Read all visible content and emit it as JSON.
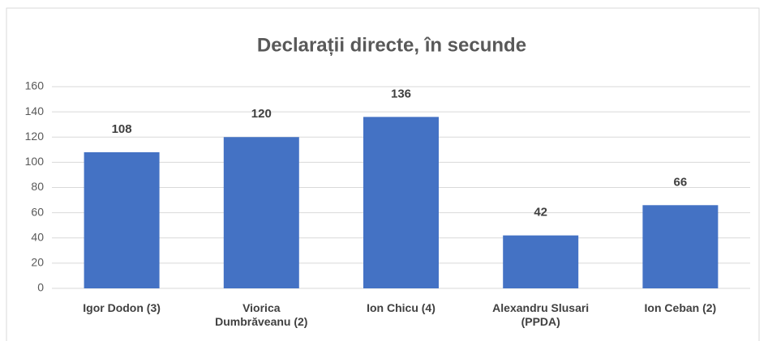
{
  "chart_data": {
    "type": "bar",
    "title": "Declarații directe, în secunde",
    "categories": [
      "Igor Dodon (3)",
      "Viorica Dumbrăveanu (2)",
      "Ion Chicu (4)",
      "Alexandru Slusari (PPDA)",
      "Ion Ceban (2)"
    ],
    "values": [
      108,
      120,
      136,
      42,
      66
    ],
    "color": "#4472c4",
    "ylim": [
      0,
      160
    ],
    "yticks": [
      0,
      20,
      40,
      60,
      80,
      100,
      120,
      140,
      160
    ],
    "grid": true
  }
}
